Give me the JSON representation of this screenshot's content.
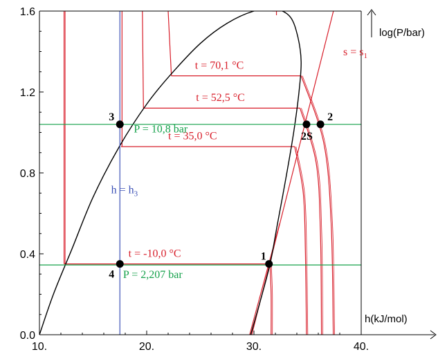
{
  "chart_data": {
    "type": "line",
    "xlabel": "h(kJ/mol)",
    "ylabel": "log(P/bar)",
    "xlim": [
      10,
      40
    ],
    "ylim": [
      0,
      1.6
    ],
    "x_ticks": [
      {
        "value": 10,
        "label": "10."
      },
      {
        "value": 20,
        "label": "20."
      },
      {
        "value": 30,
        "label": "30."
      },
      {
        "value": 40,
        "label": "40."
      }
    ],
    "y_ticks": [
      {
        "value": 0.0,
        "label": "0.0"
      },
      {
        "value": 0.4,
        "label": "0.4"
      },
      {
        "value": 0.8,
        "label": "0.8"
      },
      {
        "value": 1.2,
        "label": "1.2"
      },
      {
        "value": 1.6,
        "label": "1.6"
      }
    ],
    "dome": {
      "color": "#000000",
      "points": [
        [
          10.0,
          0.0
        ],
        [
          11.3,
          0.2
        ],
        [
          13.0,
          0.42
        ],
        [
          15.0,
          0.68
        ],
        [
          17.5,
          0.935
        ],
        [
          20.0,
          1.14
        ],
        [
          22.3,
          1.29
        ],
        [
          25.0,
          1.44
        ],
        [
          27.5,
          1.54
        ],
        [
          30.0,
          1.6
        ],
        [
          32.0,
          1.61
        ],
        [
          33.4,
          1.57
        ],
        [
          34.1,
          1.47
        ],
        [
          34.4,
          1.35
        ],
        [
          34.2,
          1.2
        ],
        [
          33.7,
          1.0
        ],
        [
          33.0,
          0.78
        ],
        [
          32.2,
          0.55
        ],
        [
          31.5,
          0.35
        ],
        [
          30.5,
          0.15
        ],
        [
          29.7,
          0.0
        ]
      ]
    },
    "isotherms": {
      "color": "#d81e2a",
      "series": [
        {
          "label": "t = -10,0 °C",
          "p": 0.35,
          "liq_x": 12.3,
          "vap_x": 31.5,
          "sup": [
            [
              31.5,
              0.35
            ],
            [
              31.6,
              0.2
            ],
            [
              31.6,
              0.0
            ]
          ],
          "label_at": [
            18.3,
            0.385
          ]
        },
        {
          "label": "t = 35,0 °C",
          "p": 0.93,
          "liq_x": 17.6,
          "vap_x": 33.8,
          "sup": [
            [
              33.8,
              0.93
            ],
            [
              34.6,
              0.7
            ],
            [
              34.8,
              0.4
            ],
            [
              34.9,
              0.0
            ]
          ],
          "label_at": [
            22.0,
            0.965
          ]
        },
        {
          "label": "t = 52,5 °C",
          "p": 1.12,
          "liq_x": 19.7,
          "vap_x": 34.3,
          "sup": [
            [
              34.3,
              1.12
            ],
            [
              35.8,
              0.85
            ],
            [
              36.2,
              0.5
            ],
            [
              36.3,
              0.0
            ]
          ],
          "label_at": [
            24.6,
            1.155
          ]
        },
        {
          "label": "t = 70,1 °C",
          "p": 1.28,
          "liq_x": 22.3,
          "vap_x": 34.4,
          "sup": [
            [
              34.4,
              1.28
            ],
            [
              36.5,
              0.95
            ],
            [
              37.2,
              0.55
            ],
            [
              37.4,
              0.0
            ]
          ],
          "label_at": [
            24.5,
            1.315
          ]
        }
      ]
    },
    "isobars": {
      "color": "#14a14a",
      "series": [
        {
          "label": "P = 10,8 bar",
          "log_p": 1.04,
          "label_at": [
            18.8,
            1.0
          ]
        },
        {
          "label": "P = 2,207 bar",
          "log_p": 0.345,
          "label_at": [
            17.8,
            0.28
          ]
        }
      ]
    },
    "isenthalp": {
      "label": "h = h",
      "sub": "3",
      "h": 17.5,
      "color": "#3a4fb5",
      "label_at": [
        17.2,
        0.7
      ]
    },
    "isentropes": {
      "label": "s = s",
      "sub": "1",
      "color": "#d81e2a",
      "label_at": [
        37.3,
        1.38
      ],
      "lines": [
        [
          [
            29.8,
            0.0
          ],
          [
            37.6,
            1.64
          ]
        ],
        [
          [
            29.6,
            0.0
          ],
          [
            32.4,
            0.55
          ]
        ]
      ]
    },
    "points": [
      {
        "name": "1",
        "h": 31.4,
        "log_p": 0.35
      },
      {
        "name": "2",
        "h": 36.2,
        "log_p": 1.04
      },
      {
        "name": "2S",
        "h": 34.9,
        "log_p": 1.04
      },
      {
        "name": "3",
        "h": 17.5,
        "log_p": 1.04
      },
      {
        "name": "4",
        "h": 17.5,
        "log_p": 0.35
      }
    ]
  }
}
